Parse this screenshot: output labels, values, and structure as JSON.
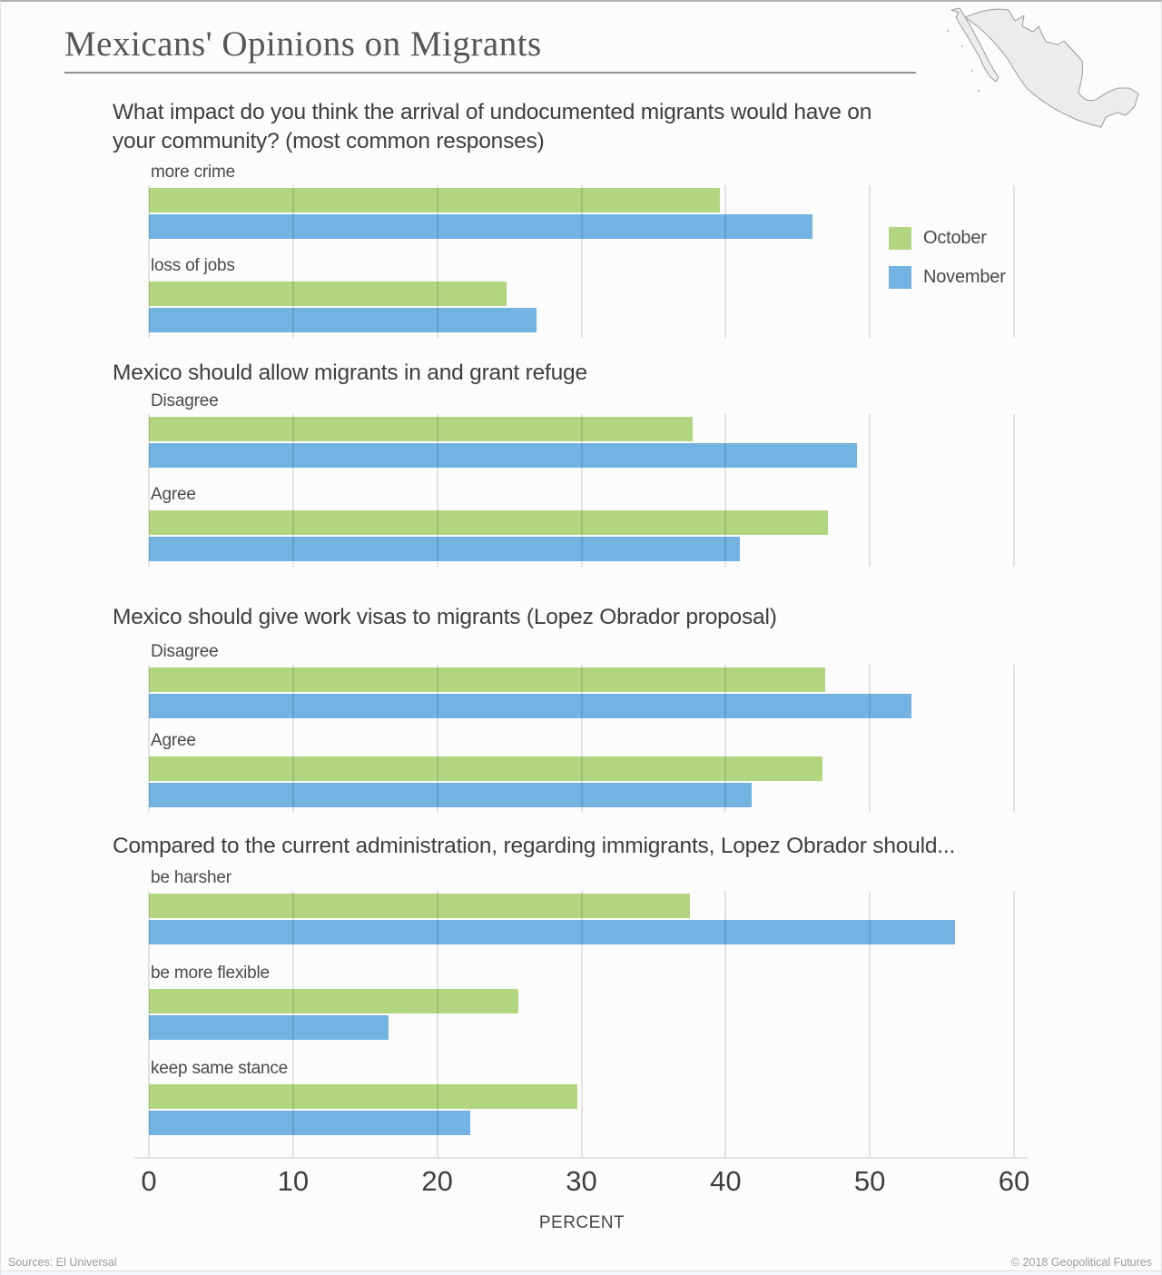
{
  "header": {
    "title": "Mexicans' Opinions on Migrants"
  },
  "legend": {
    "items": [
      {
        "label": "October",
        "color": "#b1d67f"
      },
      {
        "label": "November",
        "color": "#72b3e2"
      }
    ]
  },
  "axis": {
    "ticks": [
      "0",
      "10",
      "20",
      "30",
      "40",
      "50",
      "60"
    ],
    "max": 60,
    "label": "PERCENT"
  },
  "footer": {
    "sources": "Sources: El Universal",
    "copyright": "© 2018 Geopolitical Futures"
  },
  "chart_data": [
    {
      "type": "bar",
      "title": "What impact do you think the arrival of undocumented migrants would have on your community? (most common responses)",
      "categories": [
        "more crime",
        "loss of jobs"
      ],
      "series": [
        {
          "name": "October",
          "values": [
            39.6,
            24.8
          ]
        },
        {
          "name": "November",
          "values": [
            46.0,
            26.9
          ]
        }
      ],
      "xlabel": "PERCENT",
      "xlim": [
        0,
        60
      ],
      "grid": true,
      "legend_position": "right"
    },
    {
      "type": "bar",
      "title": "Mexico should allow migrants in and grant refuge",
      "categories": [
        "Disagree",
        "Agree"
      ],
      "series": [
        {
          "name": "October",
          "values": [
            37.7,
            47.1
          ]
        },
        {
          "name": "November",
          "values": [
            49.1,
            41.0
          ]
        }
      ],
      "xlabel": "PERCENT",
      "xlim": [
        0,
        60
      ],
      "grid": true
    },
    {
      "type": "bar",
      "title": "Mexico should give work visas to migrants (Lopez Obrador proposal)",
      "categories": [
        "Disagree",
        "Agree"
      ],
      "series": [
        {
          "name": "October",
          "values": [
            46.9,
            46.7
          ]
        },
        {
          "name": "November",
          "values": [
            52.9,
            41.8
          ]
        }
      ],
      "xlabel": "PERCENT",
      "xlim": [
        0,
        60
      ],
      "grid": true
    },
    {
      "type": "bar",
      "title": "Compared to the current administration, regarding immigrants, Lopez Obrador should...",
      "categories": [
        "be harsher",
        "be more flexible",
        "keep same stance"
      ],
      "series": [
        {
          "name": "October",
          "values": [
            37.5,
            25.6,
            29.7
          ]
        },
        {
          "name": "November",
          "values": [
            55.9,
            16.6,
            22.3
          ]
        }
      ],
      "xlabel": "PERCENT",
      "xlim": [
        0,
        60
      ],
      "grid": true
    }
  ]
}
